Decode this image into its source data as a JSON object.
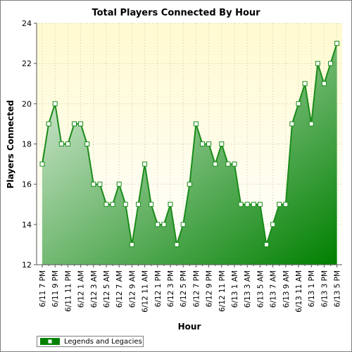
{
  "colors": {
    "line": "#1a8c1a",
    "fill_light": "#e6f2e6",
    "fill_dark": "#008000",
    "plot_bg_top": "#fffad0",
    "plot_bg_bottom": "#ffffff",
    "grid": "#c8c8a0",
    "marker_fill": "#ffffff"
  },
  "chart_data": {
    "type": "area",
    "title": "Total Players Connected By Hour",
    "xlabel": "Hour",
    "ylabel": "Players Connected",
    "ylim": [
      12,
      24
    ],
    "yticks": [
      12,
      14,
      16,
      18,
      20,
      22,
      24
    ],
    "grid": true,
    "legend_position": "bottom-left",
    "x": [
      "6/11 7 PM",
      "6/11 8 PM",
      "6/11 9 PM",
      "6/11 10 PM",
      "6/11 11 PM",
      "6/12 12 AM",
      "6/12 1 AM",
      "6/12 2 AM",
      "6/12 3 AM",
      "6/12 4 AM",
      "6/12 5 AM",
      "6/12 6 AM",
      "6/12 7 AM",
      "6/12 8 AM",
      "6/12 9 AM",
      "6/12 10 AM",
      "6/12 11 AM",
      "6/12 12 PM",
      "6/12 1 PM",
      "6/12 2 PM",
      "6/12 3 PM",
      "6/12 4 PM",
      "6/12 5 PM",
      "6/12 6 PM",
      "6/12 7 PM",
      "6/12 8 PM",
      "6/12 9 PM",
      "6/12 10 PM",
      "6/12 11 PM",
      "6/13 12 AM",
      "6/13 1 AM",
      "6/13 2 AM",
      "6/13 3 AM",
      "6/13 4 AM",
      "6/13 5 AM",
      "6/13 6 AM",
      "6/13 7 AM",
      "6/13 8 AM",
      "6/13 9 AM",
      "6/13 10 AM",
      "6/13 11 AM",
      "6/13 12 PM",
      "6/13 1 PM",
      "6/13 2 PM",
      "6/13 3 PM",
      "6/13 4 PM",
      "6/13 5 PM"
    ],
    "x_tick_labels": [
      "6/11 7 PM",
      "6/11 9 PM",
      "6/11 11 PM",
      "6/12 1 AM",
      "6/12 3 AM",
      "6/12 5 AM",
      "6/12 7 AM",
      "6/12 9 AM",
      "6/12 11 AM",
      "6/12 1 PM",
      "6/12 3 PM",
      "6/12 5 PM",
      "6/12 7 PM",
      "6/12 9 PM",
      "6/12 11 PM",
      "6/13 1 AM",
      "6/13 3 AM",
      "6/13 5 AM",
      "6/13 7 AM",
      "6/13 9 AM",
      "6/13 11 AM",
      "6/13 1 PM",
      "6/13 3 PM",
      "6/13 5 PM"
    ],
    "series": [
      {
        "name": "Legends and Legacies",
        "values": [
          17,
          19,
          20,
          18,
          18,
          19,
          19,
          18,
          16,
          16,
          15,
          15,
          16,
          15,
          13,
          15,
          17,
          15,
          14,
          14,
          15,
          13,
          14,
          16,
          19,
          18,
          18,
          17,
          18,
          17,
          17,
          15,
          15,
          15,
          15,
          13,
          14,
          15,
          15,
          19,
          20,
          21,
          19,
          22,
          21,
          22,
          23
        ]
      }
    ]
  }
}
